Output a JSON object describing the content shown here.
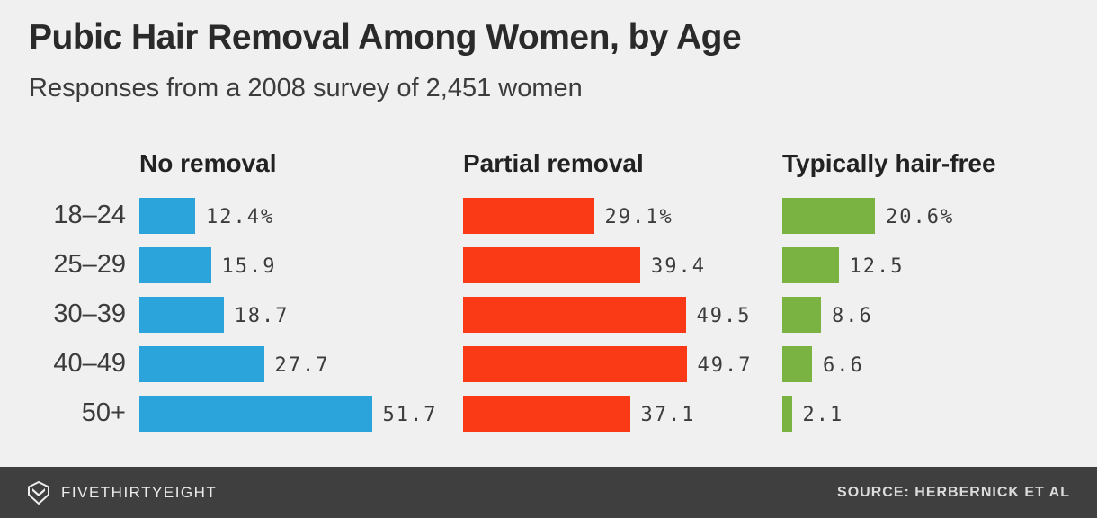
{
  "header": {
    "title": "Pubic Hair Removal Among Women, by Age",
    "subtitle": "Responses from a 2008 survey of 2,451 women"
  },
  "chart_data": {
    "type": "bar",
    "orientation": "horizontal",
    "title": "Pubic Hair Removal Among Women, by Age",
    "subtitle": "Responses from a 2008 survey of 2,451 women",
    "categories": [
      "18–24",
      "25–29",
      "30–39",
      "40–49",
      "50+"
    ],
    "series": [
      {
        "name": "No removal",
        "color": "#2ba3db",
        "values": [
          12.4,
          15.9,
          18.7,
          27.7,
          51.7
        ]
      },
      {
        "name": "Partial removal",
        "color": "#fa3a17",
        "values": [
          29.1,
          39.4,
          49.5,
          49.7,
          37.1
        ]
      },
      {
        "name": "Typically hair-free",
        "color": "#7bb342",
        "values": [
          20.6,
          12.5,
          8.6,
          6.6,
          2.1
        ]
      }
    ],
    "value_labels": [
      [
        "12.4%",
        "15.9",
        "18.7",
        "27.7",
        "51.7"
      ],
      [
        "29.1%",
        "39.4",
        "49.5",
        "49.7",
        "37.1"
      ],
      [
        "20.6%",
        "12.5",
        "8.6",
        "6.6",
        "2.1"
      ]
    ],
    "xlim": [
      0,
      55
    ],
    "grid": false,
    "legend_position": "column-headers",
    "unit": "%"
  },
  "footer": {
    "brand": "FIVETHIRTYEIGHT",
    "source": "SOURCE: HERBERNICK ET AL",
    "logo_icon": "fivethirtyeight-bird-logo"
  },
  "colors": {
    "background": "#f0f0f0",
    "footer_background": "#3f3f3f",
    "text_dark": "#3c3c3c"
  }
}
